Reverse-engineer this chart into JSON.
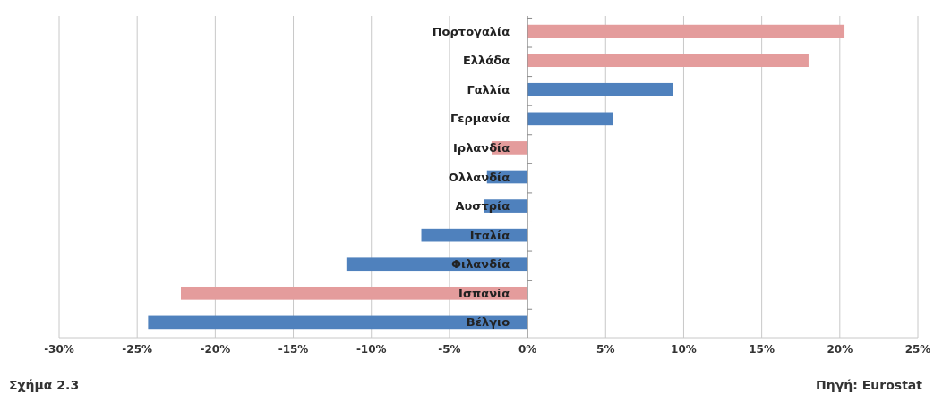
{
  "chart_data": {
    "type": "bar",
    "orientation": "horizontal",
    "categories": [
      "Πορτογαλία",
      "Ελλάδα",
      "Γαλλία",
      "Γερμανία",
      "Ιρλανδία",
      "Ολλανδία",
      "Αυστρία",
      "Ιταλία",
      "Φιλανδία",
      "Ισπανία",
      "Βέλγιο"
    ],
    "values": [
      20.3,
      18.0,
      9.3,
      5.5,
      -2.3,
      -2.6,
      -2.8,
      -6.8,
      -11.6,
      -22.2,
      -24.3
    ],
    "colors": [
      "#e49c9c",
      "#e49c9c",
      "#4f81bd",
      "#4f81bd",
      "#e49c9c",
      "#4f81bd",
      "#4f81bd",
      "#4f81bd",
      "#4f81bd",
      "#e49c9c",
      "#4f81bd"
    ],
    "xlim": [
      -30,
      25
    ],
    "xticks": [
      {
        "value": -30,
        "label": "-30%"
      },
      {
        "value": -25,
        "label": "-25%"
      },
      {
        "value": -20,
        "label": "-20%"
      },
      {
        "value": -15,
        "label": "-15%"
      },
      {
        "value": -10,
        "label": "-10%"
      },
      {
        "value": -5,
        "label": "-5%"
      },
      {
        "value": 0,
        "label": "0%"
      },
      {
        "value": 5,
        "label": "5%"
      },
      {
        "value": 10,
        "label": "10%"
      },
      {
        "value": 15,
        "label": "15%"
      },
      {
        "value": 20,
        "label": "20%"
      },
      {
        "value": 25,
        "label": "25%"
      }
    ],
    "grid": "x",
    "annotations": [
      "Σχήμα 2.3",
      "Πηγή: Eurostat"
    ]
  }
}
